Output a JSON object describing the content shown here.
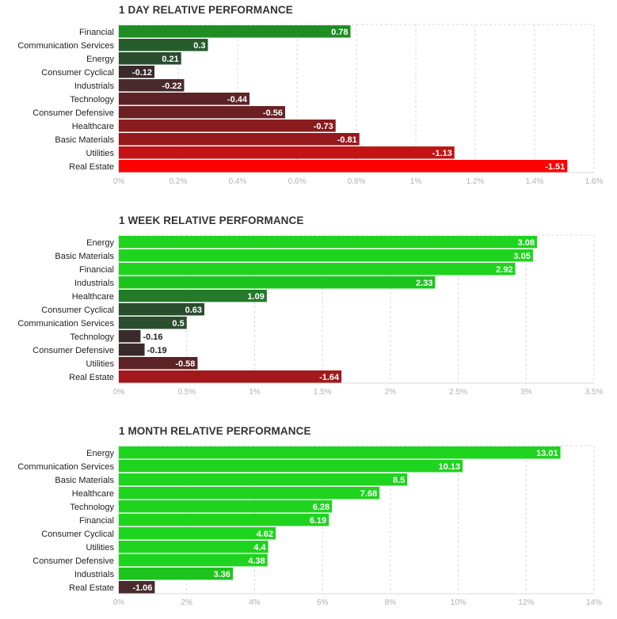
{
  "chart_data": [
    {
      "type": "bar",
      "orientation": "horizontal",
      "title": "1 DAY RELATIVE PERFORMANCE",
      "categories": [
        "Financial",
        "Communication Services",
        "Energy",
        "Consumer Cyclical",
        "Industrials",
        "Technology",
        "Consumer Defensive",
        "Healthcare",
        "Basic Materials",
        "Utilities",
        "Real Estate"
      ],
      "values": [
        0.78,
        0.3,
        0.21,
        -0.12,
        -0.22,
        -0.44,
        -0.56,
        -0.73,
        -0.81,
        -1.13,
        -1.51
      ],
      "value_labels": [
        "0.78",
        "0.3",
        "0.21",
        "-0.12",
        "-0.22",
        "-0.44",
        "-0.56",
        "-0.73",
        "-0.81",
        "-1.13",
        "-1.51"
      ],
      "colors": [
        "#1f8c24",
        "#275c2d",
        "#2a4d2e",
        "#3b2a2c",
        "#4a2b2d",
        "#5c2326",
        "#6b2024",
        "#8a1b1f",
        "#96191d",
        "#c21414",
        "#ff0000"
      ],
      "xticks": [
        "0%",
        "0.2%",
        "0.4%",
        "0.6%",
        "0.8%",
        "1%",
        "1.2%",
        "1.4%",
        "1.6%"
      ],
      "xlim": [
        0,
        1.6
      ],
      "grid": true
    },
    {
      "type": "bar",
      "orientation": "horizontal",
      "title": "1 WEEK RELATIVE PERFORMANCE",
      "categories": [
        "Energy",
        "Basic Materials",
        "Financial",
        "Industrials",
        "Healthcare",
        "Consumer Cyclical",
        "Communication Services",
        "Technology",
        "Consumer Defensive",
        "Utilities",
        "Real Estate"
      ],
      "values": [
        3.08,
        3.05,
        2.92,
        2.33,
        1.09,
        0.63,
        0.5,
        -0.16,
        -0.19,
        -0.58,
        -1.64
      ],
      "value_labels": [
        "3.08",
        "3.05",
        "2.92",
        "2.33",
        "1.09",
        "0.63",
        "0.5",
        "-0.16",
        "-0.19",
        "-0.58",
        "-1.64"
      ],
      "colors": [
        "#1ed41e",
        "#1ed41e",
        "#1ed41e",
        "#1ec41e",
        "#247a2a",
        "#2a4d2e",
        "#2a4d2e",
        "#3b2a2c",
        "#3b2a2c",
        "#5c2326",
        "#a3181c"
      ],
      "xticks": [
        "0%",
        "0.5%",
        "1%",
        "1.5%",
        "2%",
        "2.5%",
        "3%",
        "3.5%"
      ],
      "xlim": [
        0,
        3.5
      ],
      "grid": true
    },
    {
      "type": "bar",
      "orientation": "horizontal",
      "title": "1 MONTH RELATIVE PERFORMANCE",
      "categories": [
        "Energy",
        "Communication Services",
        "Basic Materials",
        "Healthcare",
        "Technology",
        "Financial",
        "Consumer Cyclical",
        "Utilities",
        "Consumer Defensive",
        "Industrials",
        "Real Estate"
      ],
      "values": [
        13.01,
        10.13,
        8.5,
        7.68,
        6.28,
        6.19,
        4.62,
        4.4,
        4.38,
        3.36,
        -1.06
      ],
      "value_labels": [
        "13.01",
        "10.13",
        "8.5",
        "7.68",
        "6.28",
        "6.19",
        "4.62",
        "4.4",
        "4.38",
        "3.36",
        "-1.06"
      ],
      "colors": [
        "#1ed41e",
        "#1ed41e",
        "#1ed41e",
        "#1ed41e",
        "#1ed41e",
        "#1ed41e",
        "#1ed41e",
        "#1ed41e",
        "#1ed41e",
        "#1ec41e",
        "#4a2b2d"
      ],
      "xticks": [
        "0%",
        "2%",
        "4%",
        "6%",
        "8%",
        "10%",
        "12%",
        "14%"
      ],
      "xlim": [
        0,
        14
      ],
      "grid": true
    }
  ]
}
